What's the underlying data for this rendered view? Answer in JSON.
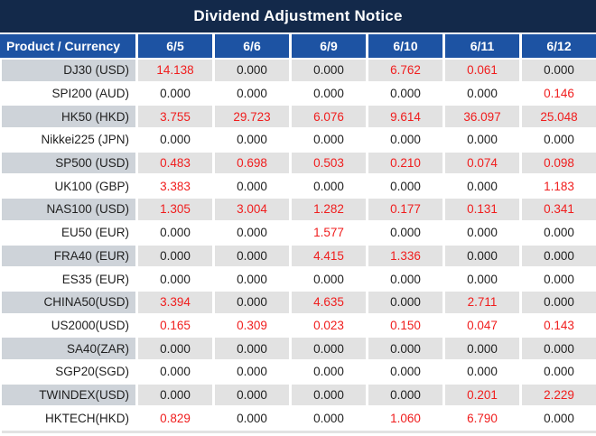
{
  "title": "Dividend Adjustment Notice",
  "table": {
    "header": {
      "product_label": "Product / Currency",
      "dates": [
        "6/5",
        "6/6",
        "6/9",
        "6/10",
        "6/11",
        "6/12"
      ]
    },
    "rows": [
      {
        "product": "DJ30 (USD)",
        "values": [
          "14.138",
          "0.000",
          "0.000",
          "6.762",
          "0.061",
          "0.000"
        ]
      },
      {
        "product": "SPI200 (AUD)",
        "values": [
          "0.000",
          "0.000",
          "0.000",
          "0.000",
          "0.000",
          "0.146"
        ]
      },
      {
        "product": "HK50 (HKD)",
        "values": [
          "3.755",
          "29.723",
          "6.076",
          "9.614",
          "36.097",
          "25.048"
        ]
      },
      {
        "product": "Nikkei225 (JPN)",
        "values": [
          "0.000",
          "0.000",
          "0.000",
          "0.000",
          "0.000",
          "0.000"
        ]
      },
      {
        "product": "SP500 (USD)",
        "values": [
          "0.483",
          "0.698",
          "0.503",
          "0.210",
          "0.074",
          "0.098"
        ]
      },
      {
        "product": "UK100 (GBP)",
        "values": [
          "3.383",
          "0.000",
          "0.000",
          "0.000",
          "0.000",
          "1.183"
        ]
      },
      {
        "product": "NAS100 (USD)",
        "values": [
          "1.305",
          "3.004",
          "1.282",
          "0.177",
          "0.131",
          "0.341"
        ]
      },
      {
        "product": "EU50 (EUR)",
        "values": [
          "0.000",
          "0.000",
          "1.577",
          "0.000",
          "0.000",
          "0.000"
        ]
      },
      {
        "product": "FRA40 (EUR)",
        "values": [
          "0.000",
          "0.000",
          "4.415",
          "1.336",
          "0.000",
          "0.000"
        ]
      },
      {
        "product": "ES35 (EUR)",
        "values": [
          "0.000",
          "0.000",
          "0.000",
          "0.000",
          "0.000",
          "0.000"
        ]
      },
      {
        "product": "CHINA50(USD)",
        "values": [
          "3.394",
          "0.000",
          "4.635",
          "0.000",
          "2.711",
          "0.000"
        ]
      },
      {
        "product": "US2000(USD)",
        "values": [
          "0.165",
          "0.309",
          "0.023",
          "0.150",
          "0.047",
          "0.143"
        ]
      },
      {
        "product": "SA40(ZAR)",
        "values": [
          "0.000",
          "0.000",
          "0.000",
          "0.000",
          "0.000",
          "0.000"
        ]
      },
      {
        "product": "SGP20(SGD)",
        "values": [
          "0.000",
          "0.000",
          "0.000",
          "0.000",
          "0.000",
          "0.000"
        ]
      },
      {
        "product": "TWINDEX(USD)",
        "values": [
          "0.000",
          "0.000",
          "0.000",
          "0.000",
          "0.201",
          "2.229"
        ]
      },
      {
        "product": "HKTECH(HKD)",
        "values": [
          "0.829",
          "0.000",
          "0.000",
          "1.060",
          "6.790",
          "0.000"
        ]
      }
    ]
  },
  "colors": {
    "title_bg": "#13294a",
    "header_bg": "#1d53a3",
    "alt_product_bg": "#ced3d9",
    "alt_value_bg": "#e2e2e2",
    "value_red": "#f01d1d",
    "text_dark": "#212121",
    "gridline_white": "#ffffff"
  }
}
